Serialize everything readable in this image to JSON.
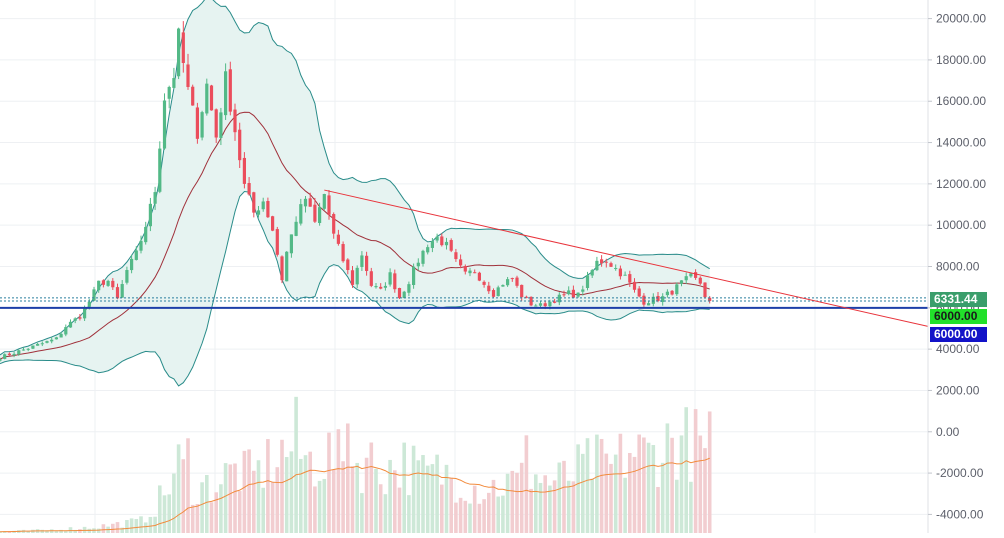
{
  "colors": {
    "background": "#ffffff",
    "grid": "#eef0f3",
    "axis_text": "#5d606b",
    "candle_up": "#53b987",
    "candle_down": "#eb4d5c",
    "bollinger_fill": "#e6f3f1",
    "bollinger_band": "#2a8c8a",
    "moving_average": "#a0303a",
    "trendline": "#e8333b",
    "support_line": "#1d3fa8",
    "last_price_dotted": "#2a7f9e",
    "volume_up": "#cde8d7",
    "volume_down": "#f2cdd0",
    "volume_ma": "#f28b3c",
    "label_last_price": "#3a9e6b",
    "label_green": "#22e02b",
    "label_blue": "#1212c8"
  },
  "chart_data": {
    "type": "candlestick",
    "title": "",
    "xlabel": "",
    "ylabel": "",
    "grid": true,
    "price_axis": {
      "side": "right",
      "ylim": [
        -4900,
        20900
      ],
      "ticks": [
        20000,
        18000,
        16000,
        14000,
        12000,
        10000,
        8000,
        6000,
        4000,
        2000,
        0,
        -2000,
        -4000
      ],
      "tick_labels": [
        "20000.00",
        "18000.00",
        "16000.00",
        "14000.00",
        "12000.00",
        "10000.00",
        "8000.00",
        "6000.00",
        "4000.00",
        "2000.00",
        "0.00",
        "-2000.00",
        "-4000.00"
      ]
    },
    "price_labels": [
      {
        "name": "last-price",
        "value": 6331.44,
        "text": "6331.44",
        "color": "label_last_price"
      },
      {
        "name": "alert-line",
        "value": 6000,
        "text": "6000.00",
        "color": "label_green"
      },
      {
        "name": "support-line",
        "value": 6000,
        "text": "6000.00",
        "color": "label_blue"
      }
    ],
    "horizontal_lines": [
      {
        "name": "support-line",
        "value": 6000,
        "style": "solid",
        "color": "support_line"
      },
      {
        "name": "last-price-line",
        "value": 6331.44,
        "style": "dotted",
        "color": "last_price_dotted"
      },
      {
        "name": "band-line",
        "value": 6480,
        "style": "dotted",
        "color": "last_price_dotted"
      }
    ],
    "trendline": {
      "from": {
        "bar": 69,
        "value": 11700
      },
      "to": {
        "bar": 206,
        "value": 5100
      }
    },
    "price_key_points": [
      [
        0,
        3600
      ],
      [
        4,
        3900
      ],
      [
        8,
        4200
      ],
      [
        12,
        4500
      ],
      [
        14,
        5100
      ],
      [
        17,
        5600
      ],
      [
        19,
        6300
      ],
      [
        21,
        7200
      ],
      [
        23,
        7300
      ],
      [
        25,
        6400
      ],
      [
        27,
        7800
      ],
      [
        29,
        8600
      ],
      [
        31,
        10000
      ],
      [
        33,
        11700
      ],
      [
        35,
        16200
      ],
      [
        37,
        17300
      ],
      [
        38,
        19100
      ],
      [
        40,
        16500
      ],
      [
        42,
        14500
      ],
      [
        44,
        16800
      ],
      [
        46,
        14300
      ],
      [
        48,
        17100
      ],
      [
        50,
        14600
      ],
      [
        52,
        11900
      ],
      [
        54,
        10600
      ],
      [
        56,
        11200
      ],
      [
        58,
        9800
      ],
      [
        60,
        7400
      ],
      [
        61,
        8700
      ],
      [
        63,
        10300
      ],
      [
        65,
        11300
      ],
      [
        67,
        10100
      ],
      [
        69,
        11500
      ],
      [
        71,
        9500
      ],
      [
        73,
        8300
      ],
      [
        75,
        7200
      ],
      [
        77,
        8600
      ],
      [
        79,
        7100
      ],
      [
        81,
        6800
      ],
      [
        83,
        7600
      ],
      [
        85,
        6500
      ],
      [
        87,
        7300
      ],
      [
        89,
        8300
      ],
      [
        91,
        9100
      ],
      [
        93,
        9400
      ],
      [
        95,
        9000
      ],
      [
        97,
        8200
      ],
      [
        99,
        7600
      ],
      [
        101,
        7800
      ],
      [
        103,
        7200
      ],
      [
        105,
        6700
      ],
      [
        107,
        7200
      ],
      [
        109,
        7400
      ],
      [
        111,
        6600
      ],
      [
        113,
        6200
      ],
      [
        115,
        6100
      ],
      [
        117,
        6300
      ],
      [
        119,
        6500
      ],
      [
        121,
        6700
      ],
      [
        123,
        6600
      ],
      [
        125,
        7400
      ],
      [
        127,
        8200
      ],
      [
        129,
        8300
      ],
      [
        131,
        7900
      ],
      [
        133,
        7500
      ],
      [
        135,
        6800
      ],
      [
        137,
        6300
      ],
      [
        139,
        6400
      ],
      [
        141,
        6500
      ],
      [
        143,
        6800
      ],
      [
        145,
        7200
      ],
      [
        147,
        7500
      ],
      [
        149,
        7200
      ],
      [
        150,
        6600
      ],
      [
        151,
        6331.44
      ]
    ],
    "volume": {
      "ylim": [
        0,
        1
      ],
      "key_points": [
        [
          0,
          0.01
        ],
        [
          10,
          0.02
        ],
        [
          20,
          0.04
        ],
        [
          30,
          0.08
        ],
        [
          35,
          0.26
        ],
        [
          38,
          0.46
        ],
        [
          42,
          0.3
        ],
        [
          46,
          0.34
        ],
        [
          50,
          0.42
        ],
        [
          54,
          0.38
        ],
        [
          58,
          0.5
        ],
        [
          62,
          0.57
        ],
        [
          66,
          0.48
        ],
        [
          70,
          0.52
        ],
        [
          74,
          0.45
        ],
        [
          78,
          0.49
        ],
        [
          82,
          0.43
        ],
        [
          86,
          0.47
        ],
        [
          90,
          0.39
        ],
        [
          94,
          0.41
        ],
        [
          98,
          0.36
        ],
        [
          102,
          0.3
        ],
        [
          106,
          0.32
        ],
        [
          110,
          0.35
        ],
        [
          114,
          0.38
        ],
        [
          118,
          0.34
        ],
        [
          122,
          0.4
        ],
        [
          126,
          0.48
        ],
        [
          130,
          0.44
        ],
        [
          134,
          0.55
        ],
        [
          138,
          0.52
        ],
        [
          142,
          0.6
        ],
        [
          146,
          0.64
        ],
        [
          150,
          0.55
        ],
        [
          151,
          0.62
        ]
      ],
      "spikes": [
        [
          63,
          0.92
        ],
        [
          40,
          0.64
        ],
        [
          74,
          0.74
        ],
        [
          112,
          0.66
        ],
        [
          146,
          0.85
        ]
      ]
    }
  }
}
